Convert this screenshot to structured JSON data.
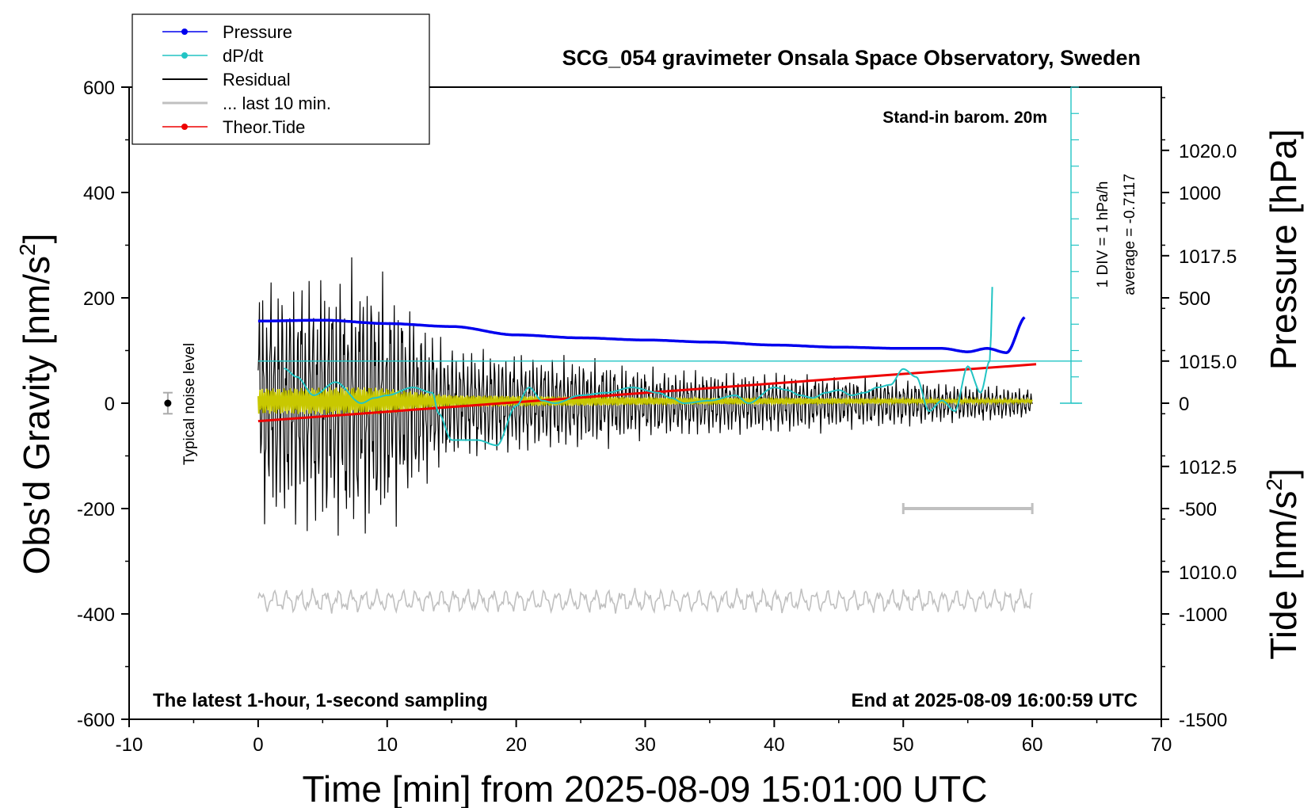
{
  "chart_data": {
    "type": "line",
    "title": "SCG_054 gravimeter Onsala Space Observatory, Sweden",
    "xlabel": "Time [min] from 2025-08-09 15:01:00 UTC",
    "ylabel_left": "Obs'd Gravity [nm/s",
    "ylabel_left_sup": "2",
    "ylabel_left_end": "]",
    "ylabel_pressure": "Pressure [hPa]",
    "ylabel_tide": "Tide [nm/s",
    "ylabel_tide_sup": "2",
    "ylabel_tide_end": "]",
    "xlim": [
      -10,
      70
    ],
    "ylim_left": [
      -600,
      600
    ],
    "pressure_lim": [
      1006.5,
      1021.5
    ],
    "tide_lim": [
      -1500,
      1500
    ],
    "x_ticks": [
      "-10",
      "0",
      "10",
      "20",
      "30",
      "40",
      "50",
      "60",
      "70"
    ],
    "y_ticks_left": [
      "600",
      "400",
      "200",
      "0",
      "-200",
      "-400",
      "-600"
    ],
    "pressure_ticks": [
      "1020.0",
      "1017.5",
      "1015.0",
      "1012.5",
      "1010.0"
    ],
    "tide_ticks": [
      "1000",
      "500",
      "0",
      "-500",
      "-1000",
      "-1500"
    ],
    "annotations": {
      "barom": "Stand-in barom. 20m",
      "div": "1 DIV = 1 hPa/h",
      "average": "average = -0.7117",
      "noise": "Typical noise level",
      "bottom_left": "The latest 1-hour, 1-second sampling",
      "bottom_right": "End at 2025-08-09 16:00:59 UTC"
    },
    "legend": [
      "Pressure",
      "dP/dt",
      "Residual",
      "... last 10 min.",
      "Theor.Tide"
    ],
    "legend_placement": "top-left",
    "colors": {
      "pressure": "#0000ee",
      "dpdt": "#22c4c4",
      "residual": "#000000",
      "last10": "#c0c0c0",
      "tide": "#ee0000",
      "yellow": "#c8c800"
    },
    "series": [
      {
        "name": "Pressure",
        "unit": "hPa",
        "x": [
          0,
          5,
          10,
          15,
          20,
          25,
          30,
          35,
          40,
          45,
          50,
          53,
          55,
          56.5,
          58,
          59.5
        ],
        "values": [
          1015.95,
          1015.97,
          1015.89,
          1015.82,
          1015.62,
          1015.55,
          1015.5,
          1015.45,
          1015.38,
          1015.33,
          1015.3,
          1015.3,
          1015.22,
          1015.3,
          1015.2,
          1016.05
        ]
      },
      {
        "name": "dP/dt",
        "unit": "hPa/h",
        "x": [
          2,
          3,
          4.3,
          6,
          8,
          9,
          10,
          12,
          13.5,
          14,
          15,
          17,
          18.5,
          20,
          21,
          22,
          23,
          25,
          27,
          29,
          31,
          32,
          33,
          35,
          37,
          38,
          40,
          41,
          42,
          43,
          44,
          45,
          46,
          47,
          48,
          49,
          50,
          51,
          52,
          53,
          54,
          55,
          56,
          56.7,
          57
        ],
        "values": [
          -0.28,
          -0.6,
          -1.3,
          -0.8,
          -1.6,
          -1.4,
          -1.3,
          -1.0,
          -1.2,
          -2.0,
          -3.0,
          -3.0,
          -3.2,
          -1.7,
          -1.0,
          -1.5,
          -1.6,
          -1.3,
          -1.2,
          -1.0,
          -1.2,
          -1.4,
          -1.6,
          -1.5,
          -1.3,
          -1.6,
          -1.0,
          -1.1,
          -1.3,
          -1.4,
          -1.2,
          -1.1,
          -1.3,
          -1.2,
          -1.0,
          -0.9,
          -0.3,
          -0.6,
          -1.9,
          -1.5,
          -1.9,
          -0.2,
          -1.2,
          0.0,
          3.8
        ]
      },
      {
        "name": "Theor.Tide",
        "unit": "nm/s2",
        "x": [
          0,
          60.3
        ],
        "values": [
          -85,
          185
        ]
      },
      {
        "name": "Residual",
        "unit": "nm/s2",
        "x": [
          0,
          8,
          16,
          24,
          32,
          40,
          48,
          56,
          60
        ],
        "envelope": [
          200,
          220,
          90,
          75,
          55,
          50,
          40,
          30,
          25
        ]
      },
      {
        "name": "... last 10 min.",
        "unit": "nm/s2",
        "x": [
          50,
          60
        ],
        "values": [
          -200,
          -200
        ]
      }
    ],
    "noise_level_x": -7,
    "noise_level_range": [
      -20,
      20
    ]
  }
}
